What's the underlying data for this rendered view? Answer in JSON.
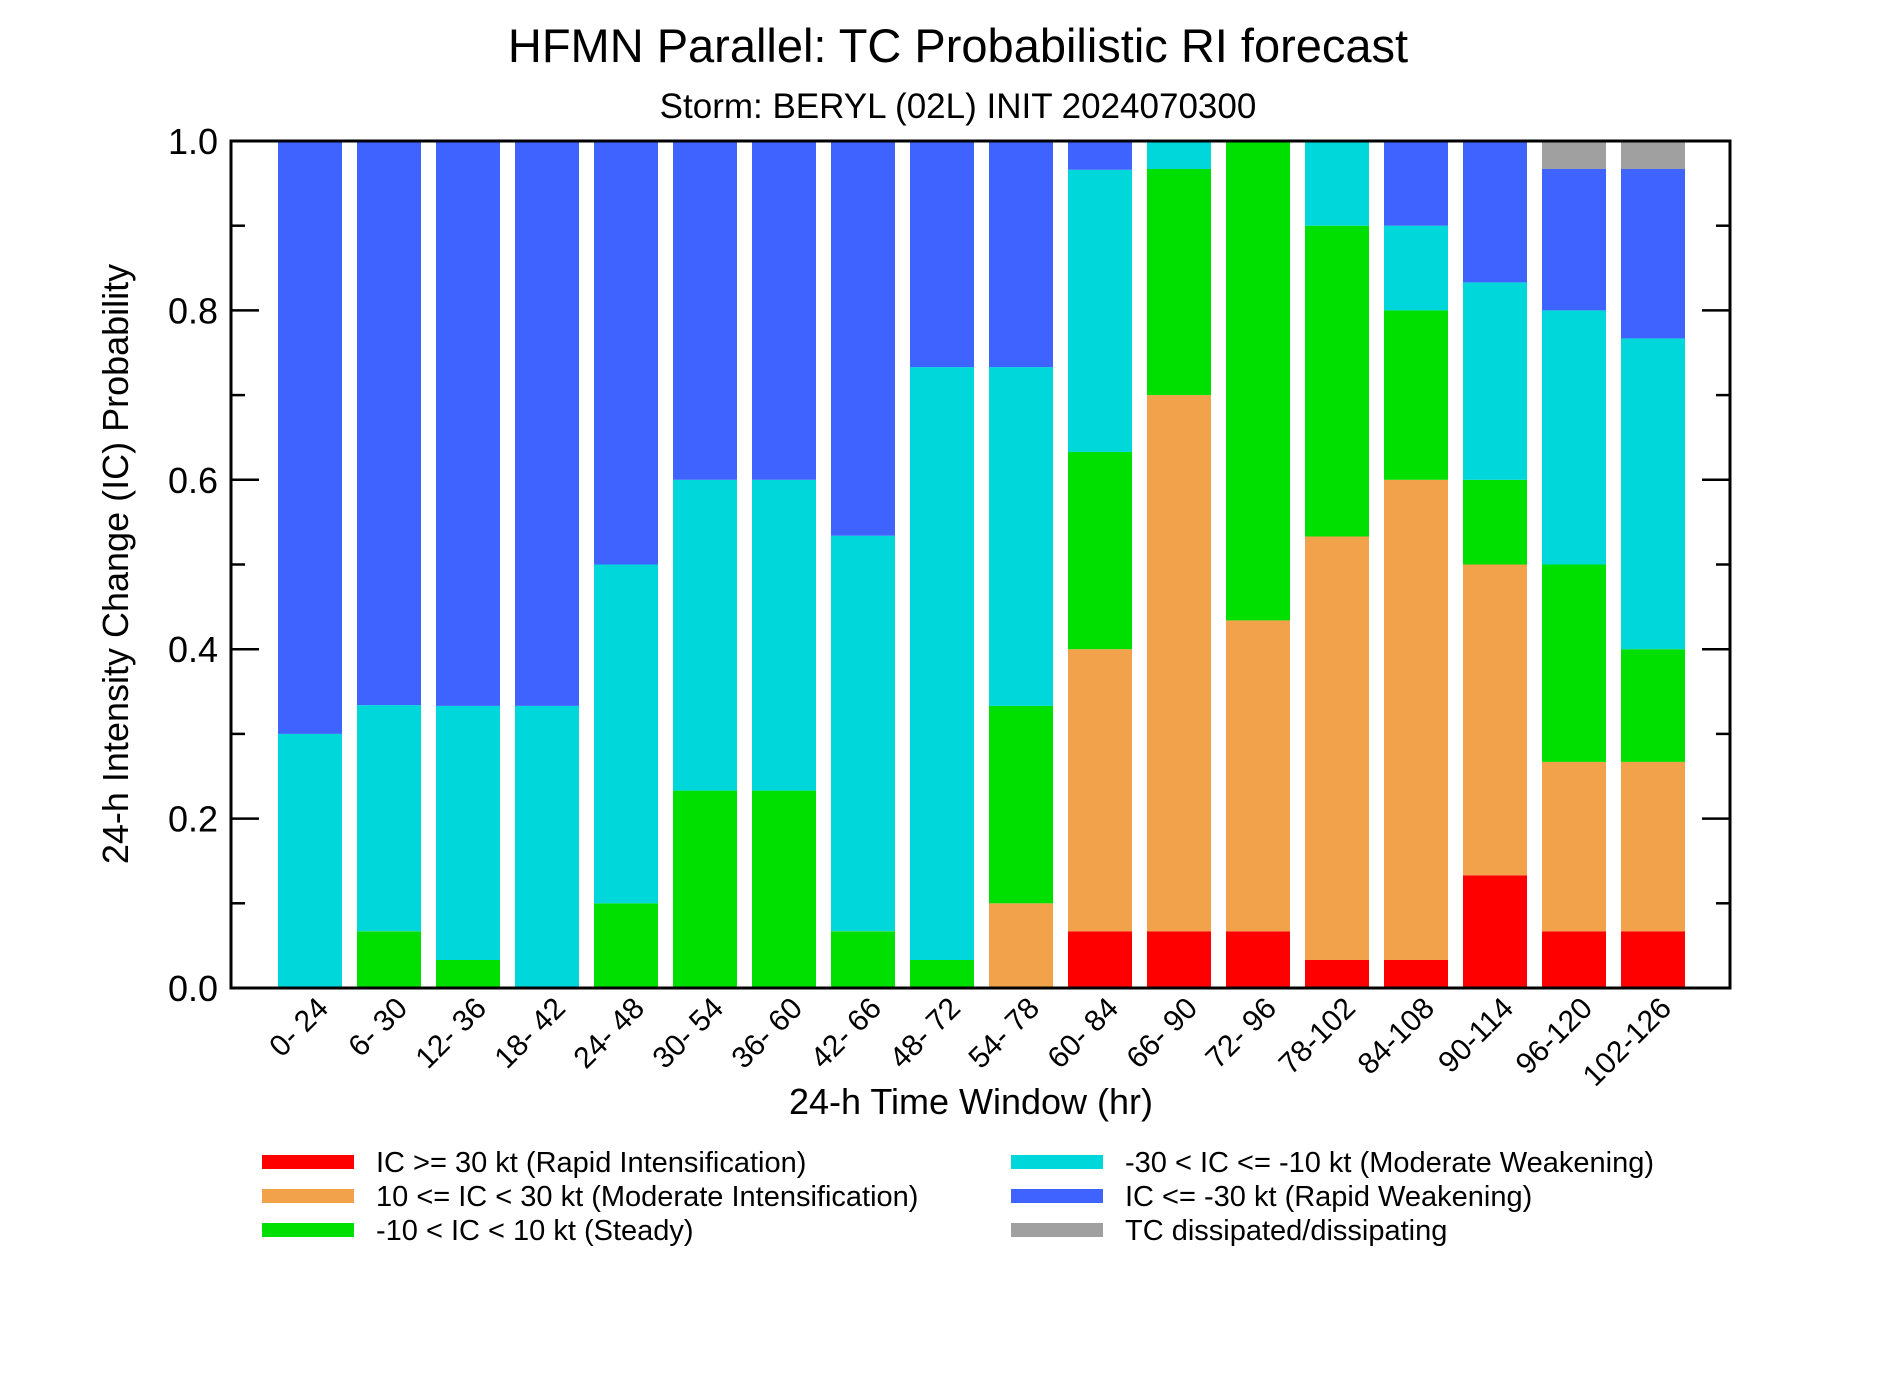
{
  "chart_data": {
    "type": "bar",
    "stacked": true,
    "title": "HFMN Parallel: TC Probabilistic RI forecast",
    "subtitle": "Storm: BERYL (02L) INIT 2024070300",
    "xlabel": "24-h Time Window (hr)",
    "ylabel": "24-h Intensity Change (IC) Probability",
    "ylim": [
      0,
      1
    ],
    "yticks": [
      "0.0",
      "0.2",
      "0.4",
      "0.6",
      "0.8",
      "1.0"
    ],
    "grid": false,
    "categories": [
      "0- 24",
      "6- 30",
      "12- 36",
      "18- 42",
      "24- 48",
      "30- 54",
      "36- 60",
      "42- 66",
      "48- 72",
      "54- 78",
      "60- 84",
      "66- 90",
      "72- 96",
      "78-102",
      "84-108",
      "90-114",
      "96-120",
      "102-126"
    ],
    "series": [
      {
        "name": "IC >= 30 kt (Rapid Intensification)",
        "color": "#ff0000",
        "values": [
          0,
          0,
          0,
          0,
          0,
          0,
          0,
          0,
          0,
          0,
          0.067,
          0.067,
          0.067,
          0.033,
          0.033,
          0.133,
          0.067,
          0.067
        ]
      },
      {
        "name": "10 <= IC < 30 kt (Moderate Intensification)",
        "color": "#f2a24a",
        "values": [
          0,
          0,
          0,
          0,
          0,
          0,
          0,
          0,
          0,
          0.1,
          0.333,
          0.633,
          0.367,
          0.5,
          0.567,
          0.367,
          0.2,
          0.2
        ]
      },
      {
        "name": "-10 < IC < 10 kt (Steady)",
        "color": "#00e000",
        "values": [
          0,
          0.067,
          0.033,
          0,
          0.1,
          0.233,
          0.233,
          0.067,
          0.033,
          0.233,
          0.233,
          0.267,
          0.567,
          0.367,
          0.2,
          0.1,
          0.233,
          0.133
        ]
      },
      {
        "name": "-30 < IC <= -10 kt (Moderate Weakening)",
        "color": "#00d7db",
        "values": [
          0.3,
          0.267,
          0.3,
          0.333,
          0.4,
          0.367,
          0.367,
          0.467,
          0.7,
          0.4,
          0.333,
          0.033,
          0,
          0.1,
          0.1,
          0.233,
          0.3,
          0.367
        ]
      },
      {
        "name": "IC <= -30 kt (Rapid Weakening)",
        "color": "#3f63fe",
        "values": [
          0.7,
          0.667,
          0.667,
          0.667,
          0.5,
          0.4,
          0.4,
          0.467,
          0.267,
          0.267,
          0.033,
          0,
          0,
          0,
          0.1,
          0.167,
          0.167,
          0.2
        ]
      },
      {
        "name": "TC dissipated/dissipating",
        "color": "#a0a0a0",
        "values": [
          0,
          0,
          0,
          0,
          0,
          0,
          0,
          0,
          0,
          0,
          0,
          0,
          0,
          0,
          0,
          0,
          0.033,
          0.033
        ]
      }
    ],
    "legend_placement": "bottom",
    "legend_columns": [
      [
        0,
        1,
        2
      ],
      [
        3,
        4,
        5
      ]
    ]
  }
}
